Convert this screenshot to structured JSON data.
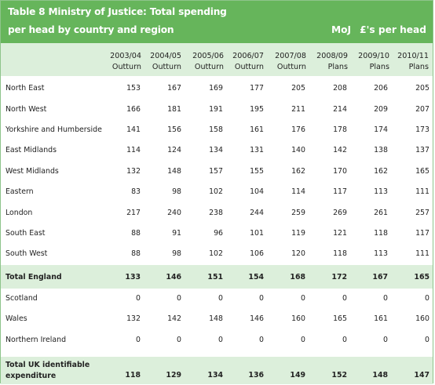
{
  "title": {
    "line1": "Table 8 Ministry of Justice: Total spending",
    "line2": "per head by country and region",
    "dept": "MoJ",
    "unit": "£'s per head"
  },
  "columns": [
    {
      "year": "2003/04",
      "type": "Outturn"
    },
    {
      "year": "2004/05",
      "type": "Outturn"
    },
    {
      "year": "2005/06",
      "type": "Outturn"
    },
    {
      "year": "2006/07",
      "type": "Outturn"
    },
    {
      "year": "2007/08",
      "type": "Outturn"
    },
    {
      "year": "2008/09",
      "type": "Plans"
    },
    {
      "year": "2009/10",
      "type": "Plans"
    },
    {
      "year": "2010/11",
      "type": "Plans"
    }
  ],
  "rows": [
    {
      "label": "North East",
      "values": [
        "153",
        "167",
        "169",
        "177",
        "205",
        "208",
        "206",
        "205"
      ]
    },
    {
      "label": "North West",
      "values": [
        "166",
        "181",
        "191",
        "195",
        "211",
        "214",
        "209",
        "207"
      ]
    },
    {
      "label": "Yorkshire and Humberside",
      "values": [
        "141",
        "156",
        "158",
        "161",
        "176",
        "178",
        "174",
        "173"
      ]
    },
    {
      "label": "East Midlands",
      "values": [
        "114",
        "124",
        "134",
        "131",
        "140",
        "142",
        "138",
        "137"
      ]
    },
    {
      "label": "West Midlands",
      "values": [
        "132",
        "148",
        "157",
        "155",
        "162",
        "170",
        "162",
        "165"
      ]
    },
    {
      "label": "Eastern",
      "values": [
        "83",
        "98",
        "102",
        "104",
        "114",
        "117",
        "113",
        "111"
      ]
    },
    {
      "label": "London",
      "values": [
        "217",
        "240",
        "238",
        "244",
        "259",
        "269",
        "261",
        "257"
      ]
    },
    {
      "label": "South East",
      "values": [
        "88",
        "91",
        "96",
        "101",
        "119",
        "121",
        "118",
        "117"
      ]
    },
    {
      "label": "South West",
      "values": [
        "88",
        "98",
        "102",
        "106",
        "120",
        "118",
        "113",
        "111"
      ]
    },
    {
      "label": "Total England",
      "values": [
        "133",
        "146",
        "151",
        "154",
        "168",
        "172",
        "167",
        "165"
      ]
    },
    {
      "label": "Scotland",
      "values": [
        "0",
        "0",
        "0",
        "0",
        "0",
        "0",
        "0",
        "0"
      ]
    },
    {
      "label": "Wales",
      "values": [
        "132",
        "142",
        "148",
        "146",
        "160",
        "165",
        "161",
        "160"
      ]
    },
    {
      "label": "Northern Ireland",
      "values": [
        "0",
        "0",
        "0",
        "0",
        "0",
        "0",
        "0",
        "0"
      ]
    },
    {
      "label_line1": "Total UK identifiable",
      "label_line2": "expenditure",
      "values": [
        "118",
        "129",
        "134",
        "136",
        "149",
        "152",
        "148",
        "147"
      ]
    }
  ]
}
